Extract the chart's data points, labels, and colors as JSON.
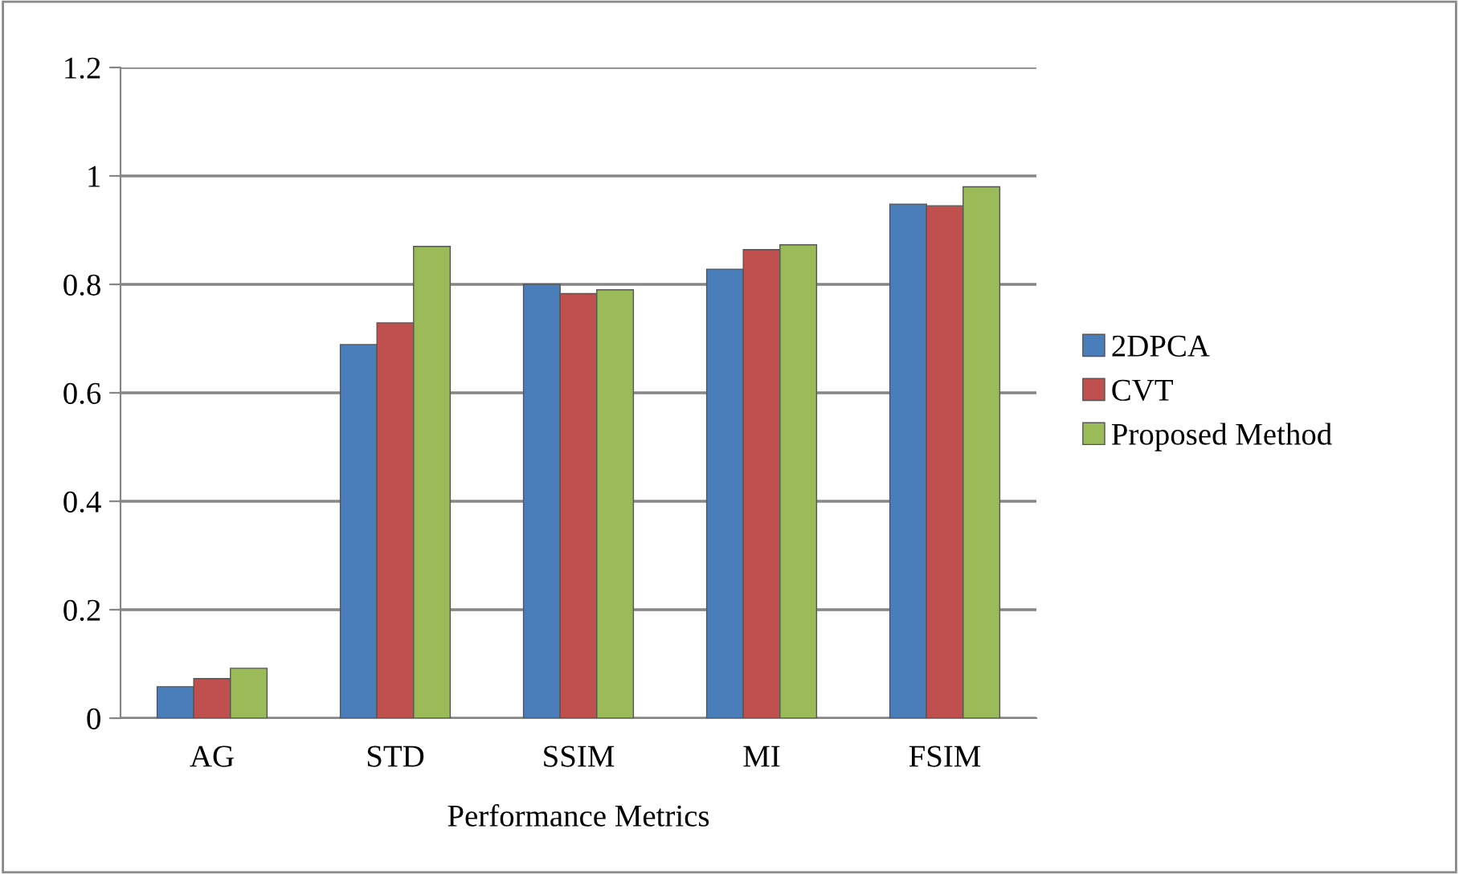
{
  "chart_data": {
    "type": "bar",
    "xlabel": "Performance Metrics",
    "categories": [
      "AG",
      "STD",
      "SSIM",
      "MI",
      "FSIM"
    ],
    "series": [
      {
        "name": "2DPCA",
        "color": "#4a7ebb",
        "values": [
          0.058,
          0.689,
          0.8,
          0.828,
          0.948
        ]
      },
      {
        "name": "CVT",
        "color": "#c0504d",
        "values": [
          0.073,
          0.729,
          0.783,
          0.864,
          0.945
        ]
      },
      {
        "name": "Proposed Method",
        "color": "#9bbb59",
        "values": [
          0.092,
          0.87,
          0.79,
          0.873,
          0.98
        ]
      }
    ],
    "ylim": [
      0,
      1.2
    ],
    "yticks": [
      0,
      0.2,
      0.4,
      0.6,
      0.8,
      1,
      1.2
    ],
    "grid": "y",
    "legend": "right"
  }
}
